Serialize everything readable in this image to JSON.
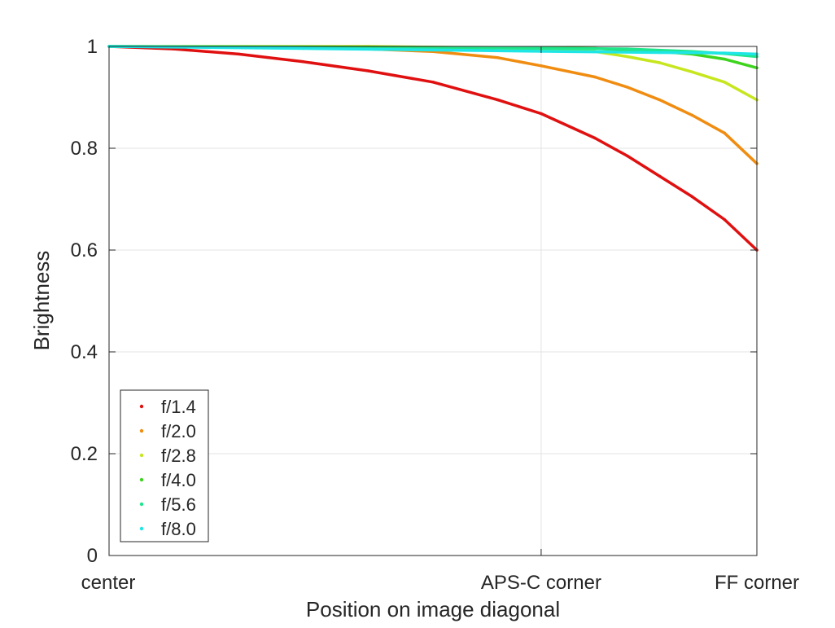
{
  "chart_data": {
    "type": "scatter",
    "title": "",
    "xlabel": "Position on image diagonal",
    "ylabel": "Brightness",
    "xlim": [
      0,
      1
    ],
    "ylim": [
      0,
      1
    ],
    "grid": true,
    "legend_position": "bottom-left",
    "x_ticks": [
      {
        "value": 0,
        "label": "center"
      },
      {
        "value": 0.667,
        "label": "APS-C corner"
      },
      {
        "value": 1,
        "label": "FF corner"
      }
    ],
    "y_ticks": [
      {
        "value": 0,
        "label": "0"
      },
      {
        "value": 0.2,
        "label": "0.2"
      },
      {
        "value": 0.4,
        "label": "0.4"
      },
      {
        "value": 0.6,
        "label": "0.6"
      },
      {
        "value": 0.8,
        "label": "0.8"
      },
      {
        "value": 1,
        "label": "1"
      }
    ],
    "series": [
      {
        "name": "f/1.4",
        "color": "#e01010",
        "x": [
          0,
          0.1,
          0.2,
          0.3,
          0.4,
          0.5,
          0.6,
          0.667,
          0.75,
          0.8,
          0.85,
          0.9,
          0.95,
          1.0
        ],
        "y": [
          1.0,
          0.995,
          0.985,
          0.97,
          0.952,
          0.93,
          0.895,
          0.868,
          0.82,
          0.785,
          0.745,
          0.705,
          0.66,
          0.6
        ]
      },
      {
        "name": "f/2.0",
        "color": "#f08c10",
        "x": [
          0,
          0.2,
          0.4,
          0.5,
          0.6,
          0.667,
          0.75,
          0.8,
          0.85,
          0.9,
          0.95,
          1.0
        ],
        "y": [
          1.0,
          0.999,
          0.995,
          0.99,
          0.978,
          0.962,
          0.94,
          0.92,
          0.895,
          0.865,
          0.83,
          0.77
        ]
      },
      {
        "name": "f/2.8",
        "color": "#c8e61e",
        "x": [
          0,
          0.4,
          0.6,
          0.667,
          0.75,
          0.8,
          0.85,
          0.9,
          0.95,
          1.0
        ],
        "y": [
          1.0,
          1.0,
          0.997,
          0.995,
          0.99,
          0.98,
          0.968,
          0.95,
          0.93,
          0.895
        ]
      },
      {
        "name": "f/4.0",
        "color": "#3ed41e",
        "x": [
          0,
          0.6,
          0.75,
          0.85,
          0.9,
          0.95,
          1.0
        ],
        "y": [
          1.0,
          0.998,
          0.996,
          0.99,
          0.985,
          0.975,
          0.958
        ]
      },
      {
        "name": "f/5.6",
        "color": "#1ee68c",
        "x": [
          0,
          0.6,
          0.8,
          0.9,
          0.95,
          1.0
        ],
        "y": [
          1.0,
          0.997,
          0.995,
          0.99,
          0.986,
          0.98
        ]
      },
      {
        "name": "f/8.0",
        "color": "#1ee6e6",
        "x": [
          0,
          0.3,
          0.5,
          0.7,
          0.85,
          0.95,
          1.0
        ],
        "y": [
          1.0,
          0.996,
          0.993,
          0.99,
          0.988,
          0.987,
          0.985
        ]
      }
    ]
  }
}
